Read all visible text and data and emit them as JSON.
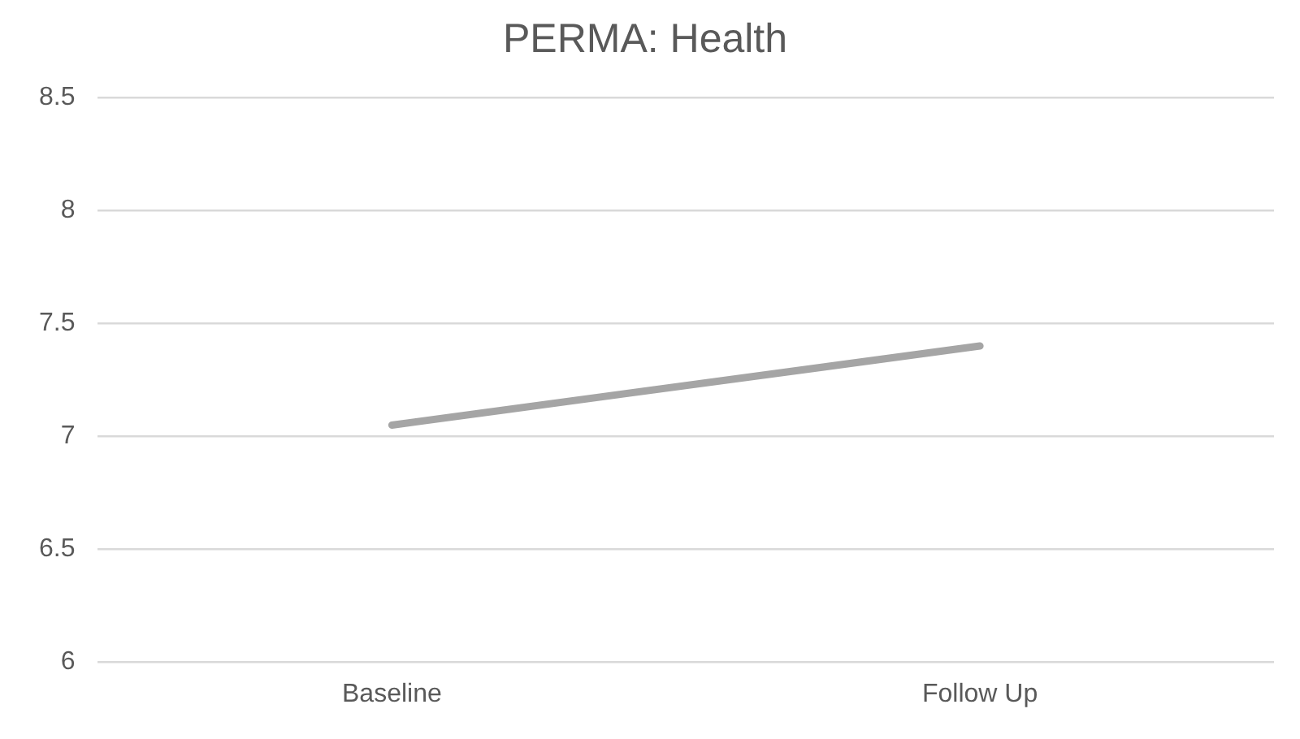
{
  "chart_data": {
    "type": "line",
    "title": "PERMA: Health",
    "categories": [
      "Baseline",
      "Follow Up"
    ],
    "series": [
      {
        "color": "#a5a5a5",
        "values": [
          7.05,
          7.4
        ]
      }
    ],
    "ylim": [
      6,
      8.5
    ],
    "yticks": [
      6,
      6.5,
      7,
      7.5,
      8,
      8.5
    ],
    "grid": "y",
    "legend": false,
    "marker": "none"
  }
}
